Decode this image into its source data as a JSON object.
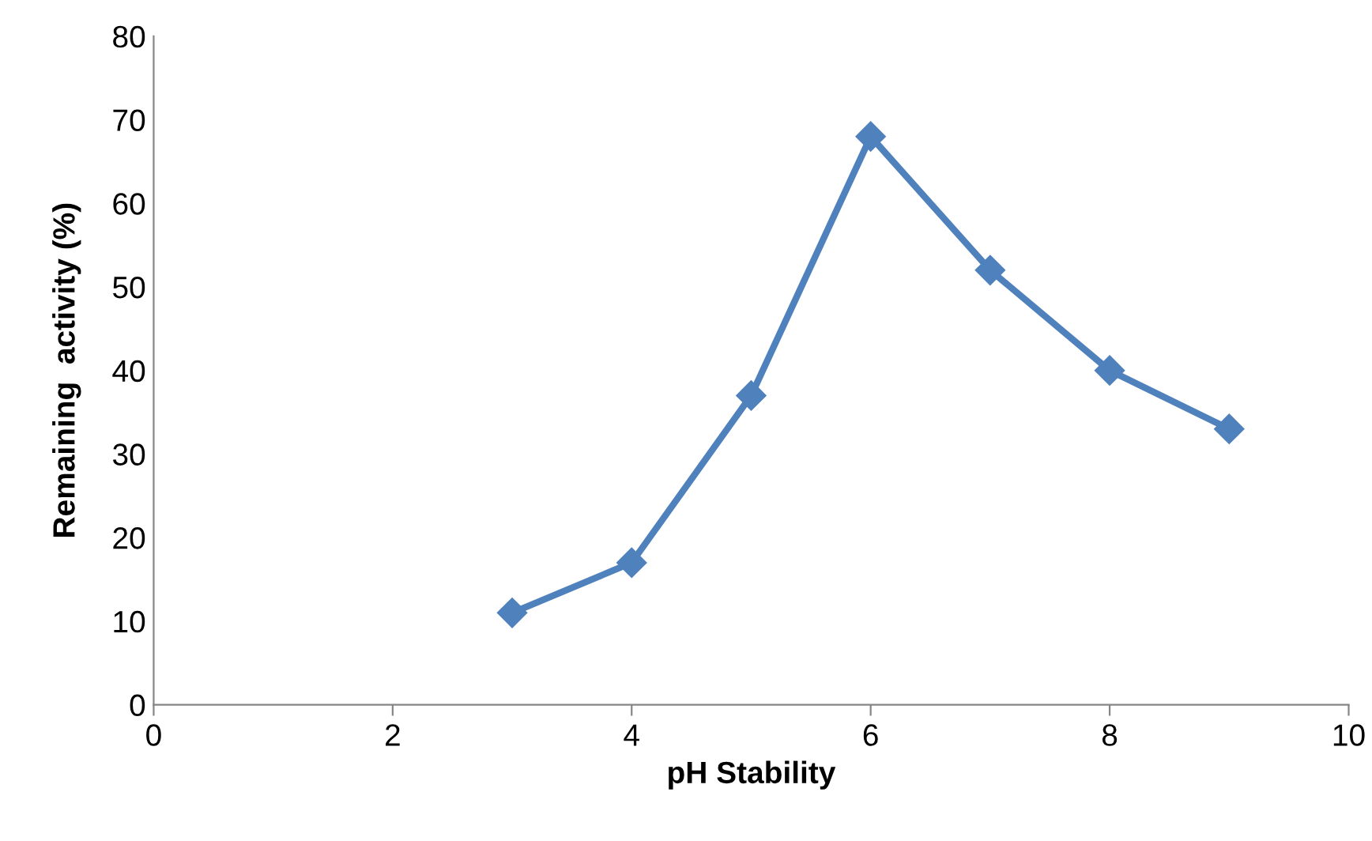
{
  "chart_data": {
    "type": "line",
    "xlabel": "pH Stability",
    "ylabel": "Remaining  activity (%)",
    "series": [
      {
        "color": "#4f81bd",
        "x": [
          3,
          4,
          5,
          6,
          7,
          8,
          9
        ],
        "values": [
          11,
          17,
          37,
          68,
          52,
          40,
          33
        ]
      }
    ],
    "xlim": [
      0,
      10
    ],
    "xticks": [
      0,
      2,
      4,
      6,
      8,
      10
    ],
    "ylim": [
      0,
      80
    ],
    "yticks": [
      0,
      10,
      20,
      30,
      40,
      50,
      60,
      70,
      80
    ],
    "grid": false,
    "legend": false,
    "marker": "diamond",
    "line_style": "solid"
  }
}
